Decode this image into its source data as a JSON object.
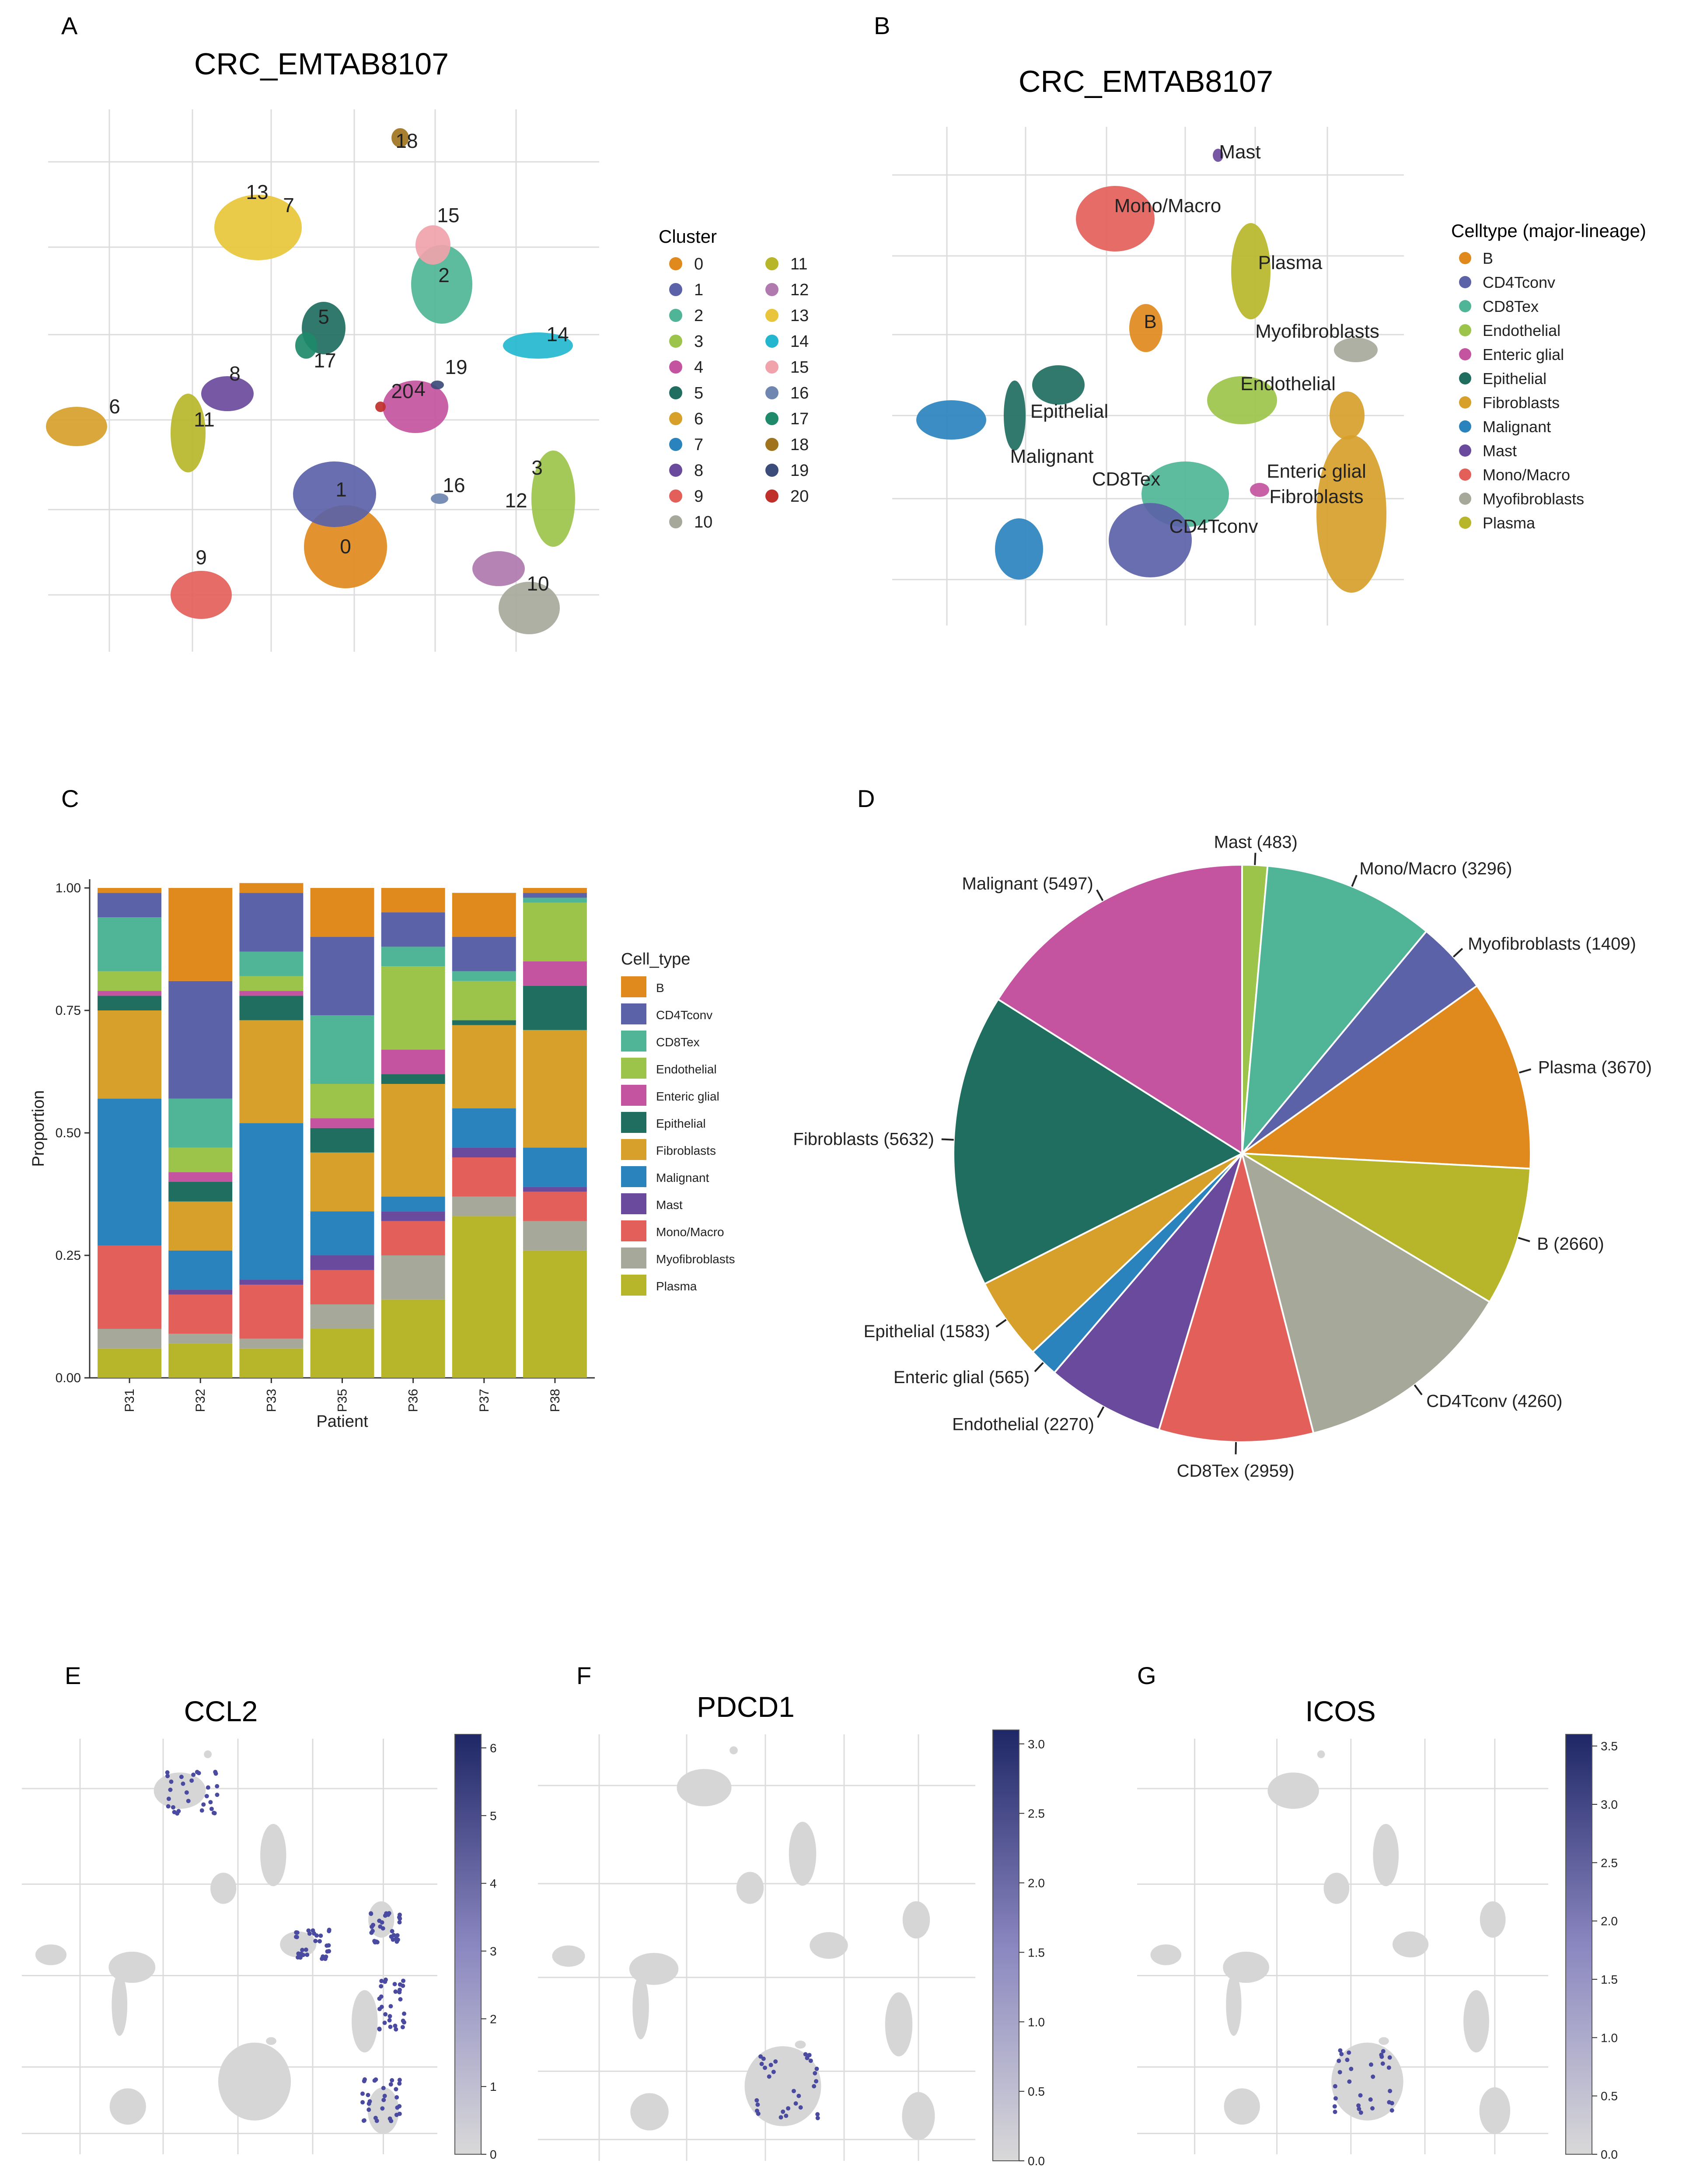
{
  "panels": {
    "A": {
      "letter": "A",
      "title": "CRC_EMTAB8107",
      "legend_title": "Cluster",
      "legend": [
        "0",
        "1",
        "2",
        "3",
        "4",
        "5",
        "6",
        "7",
        "8",
        "9",
        "10",
        "11",
        "12",
        "13",
        "14",
        "15",
        "16",
        "17",
        "18",
        "19",
        "20"
      ]
    },
    "B": {
      "letter": "B",
      "title": "CRC_EMTAB8107",
      "legend_title": "Celltype (major-lineage)",
      "legend": [
        "B",
        "CD4Tconv",
        "CD8Tex",
        "Endothelial",
        "Enteric glial",
        "Epithelial",
        "Fibroblasts",
        "Malignant",
        "Mast",
        "Mono/Macro",
        "Myofibroblasts",
        "Plasma"
      ],
      "cluster_labels": [
        "Mast",
        "Mono/Macro",
        "Plasma",
        "B",
        "Myofibroblasts",
        "Endothelial",
        "Epithelial",
        "Malignant",
        "CD8Tex",
        "Enteric glial",
        "Fibroblasts",
        "CD4Tconv"
      ]
    },
    "C": {
      "letter": "C"
    },
    "D": {
      "letter": "D"
    },
    "E": {
      "letter": "E",
      "title": "CCL2",
      "colorbar_ticks": [
        "0",
        "1",
        "2",
        "3",
        "4",
        "5",
        "6"
      ]
    },
    "F": {
      "letter": "F",
      "title": "PDCD1",
      "colorbar_ticks": [
        "0.0",
        "0.5",
        "1.0",
        "1.5",
        "2.0",
        "2.5",
        "3.0"
      ]
    },
    "G": {
      "letter": "G",
      "title": "ICOS",
      "colorbar_ticks": [
        "0.0",
        "0.5",
        "1.0",
        "1.5",
        "2.0",
        "2.5",
        "3.0",
        "3.5"
      ]
    }
  },
  "colors": {
    "B": "#E08A1E",
    "CD4Tconv": "#5B62A8",
    "CD8Tex": "#4FB596",
    "Endothelial": "#9CC44B",
    "Enteric glial": "#C454A0",
    "Epithelial": "#1F6E5F",
    "Fibroblasts": "#D6A02A",
    "Malignant": "#2B83BE",
    "Mast": "#6A4A9C",
    "Mono/Macro": "#E3605A",
    "Myofibroblasts": "#A6A99A",
    "Plasma": "#B7B62A"
  },
  "chart_data": [
    {
      "type": "bar",
      "panel": "C",
      "stacked": true,
      "title": "",
      "xlabel": "Patient",
      "ylabel": "Proportion",
      "ylim": [
        0,
        1
      ],
      "yticks": [
        "0.00",
        "0.25",
        "0.50",
        "0.75",
        "1.00"
      ],
      "legend_title": "Cell_type",
      "categories": [
        "P31",
        "P32",
        "P33",
        "P35",
        "P36",
        "P37",
        "P38"
      ],
      "series": [
        {
          "name": "Plasma",
          "values": [
            0.06,
            0.07,
            0.06,
            0.1,
            0.16,
            0.33,
            0.26
          ]
        },
        {
          "name": "Myofibroblasts",
          "values": [
            0.04,
            0.02,
            0.02,
            0.05,
            0.09,
            0.04,
            0.06
          ]
        },
        {
          "name": "Mono/Macro",
          "values": [
            0.17,
            0.08,
            0.11,
            0.07,
            0.07,
            0.08,
            0.06
          ]
        },
        {
          "name": "Mast",
          "values": [
            0.0,
            0.01,
            0.01,
            0.03,
            0.02,
            0.02,
            0.01
          ]
        },
        {
          "name": "Malignant",
          "values": [
            0.3,
            0.08,
            0.32,
            0.09,
            0.03,
            0.08,
            0.08
          ]
        },
        {
          "name": "Fibroblasts",
          "values": [
            0.18,
            0.1,
            0.21,
            0.12,
            0.23,
            0.17,
            0.24
          ]
        },
        {
          "name": "Epithelial",
          "values": [
            0.03,
            0.04,
            0.05,
            0.05,
            0.02,
            0.01,
            0.09
          ]
        },
        {
          "name": "Enteric glial",
          "values": [
            0.01,
            0.02,
            0.01,
            0.02,
            0.05,
            0.0,
            0.05
          ]
        },
        {
          "name": "Endothelial",
          "values": [
            0.04,
            0.05,
            0.03,
            0.07,
            0.17,
            0.08,
            0.12
          ]
        },
        {
          "name": "CD8Tex",
          "values": [
            0.11,
            0.1,
            0.05,
            0.14,
            0.04,
            0.02,
            0.01
          ]
        },
        {
          "name": "CD4Tconv",
          "values": [
            0.05,
            0.24,
            0.12,
            0.16,
            0.07,
            0.07,
            0.01
          ]
        },
        {
          "name": "B",
          "values": [
            0.01,
            0.19,
            0.02,
            0.1,
            0.05,
            0.09,
            0.01
          ]
        }
      ]
    },
    {
      "type": "pie",
      "panel": "D",
      "slices": [
        {
          "label": "Mast (483)",
          "name": "Mast",
          "value": 483
        },
        {
          "label": "Mono/Macro (3296)",
          "name": "Mono/Macro",
          "value": 3296
        },
        {
          "label": "Myofibroblasts (1409)",
          "name": "Myofibroblasts",
          "value": 1409
        },
        {
          "label": "Plasma (3670)",
          "name": "Plasma",
          "value": 3670
        },
        {
          "label": "B (2660)",
          "name": "B",
          "value": 2660
        },
        {
          "label": "CD4Tconv (4260)",
          "name": "CD4Tconv",
          "value": 4260
        },
        {
          "label": "CD8Tex (2959)",
          "name": "CD8Tex",
          "value": 2959
        },
        {
          "label": "Endothelial (2270)",
          "name": "Endothelial",
          "value": 2270
        },
        {
          "label": "Enteric glial (565)",
          "name": "Enteric glial",
          "value": 565
        },
        {
          "label": "Epithelial (1583)",
          "name": "Epithelial",
          "value": 1583
        },
        {
          "label": "Fibroblasts (5632)",
          "name": "Fibroblasts",
          "value": 5632
        },
        {
          "label": "Malignant (5497)",
          "name": "Malignant",
          "value": 5497
        }
      ],
      "slice_colors": [
        "#9CC44B",
        "#4FB596",
        "#5B62A8",
        "#E08A1E",
        "#B7B62A",
        "#A6A99A",
        "#E3605A",
        "#6A4A9C",
        "#2B83BE",
        "#D6A02A",
        "#1F6E5F",
        "#C454A0"
      ]
    }
  ]
}
